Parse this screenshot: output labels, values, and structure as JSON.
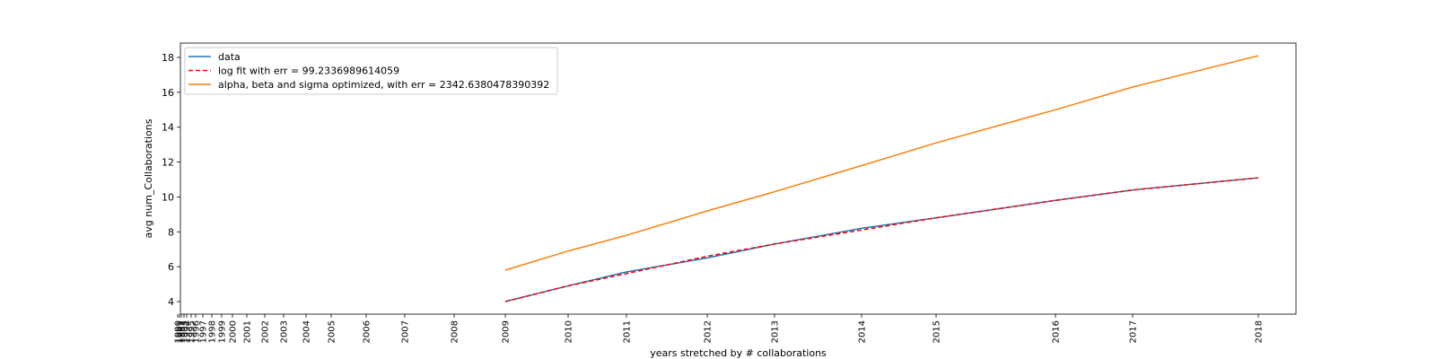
{
  "chart_data": {
    "type": "line",
    "title": "",
    "xlabel": "years stretched by # collaborations",
    "ylabel": "avg num_Collaborations",
    "ylim": [
      3.2,
      18.8
    ],
    "yticks": [
      4,
      6,
      8,
      10,
      12,
      14,
      16,
      18
    ],
    "x_tick_labels": [
      "1990",
      "1991",
      "1992",
      "1993",
      "1994",
      "1995",
      "1996",
      "1997",
      "1998",
      "1999",
      "2000",
      "2001",
      "2002",
      "2003",
      "2004",
      "2005",
      "2006",
      "2007",
      "2008",
      "2009",
      "2010",
      "2011",
      "2012",
      "2013",
      "2014",
      "2015",
      "2016",
      "2017",
      "2018"
    ],
    "grid": false,
    "legend_position": "top-left",
    "series": [
      {
        "name": "data",
        "color": "#1f77b4",
        "style": "solid",
        "x": [
          "2009",
          "2010",
          "2011",
          "2012",
          "2013",
          "2014",
          "2015",
          "2016",
          "2017",
          "2018"
        ],
        "values": [
          4.0,
          4.9,
          5.7,
          6.5,
          7.3,
          8.2,
          8.8,
          9.8,
          10.4,
          11.1
        ]
      },
      {
        "name": "log fit with err = 99.2336989614059",
        "color": "#ff0000",
        "style": "dashed",
        "x": [
          "2009",
          "2010",
          "2011",
          "2012",
          "2013",
          "2014",
          "2015",
          "2016",
          "2017",
          "2018"
        ],
        "values": [
          4.0,
          4.9,
          5.6,
          6.6,
          7.3,
          8.1,
          8.8,
          9.8,
          10.4,
          11.1
        ]
      },
      {
        "name": "alpha, beta and sigma optimized, with err = 2342.6380478390392",
        "color": "#ff7f0e",
        "style": "solid",
        "x": [
          "2009",
          "2010",
          "2011",
          "2012",
          "2013",
          "2014",
          "2015",
          "2016",
          "2017",
          "2018"
        ],
        "values": [
          5.8,
          6.9,
          7.8,
          9.2,
          10.3,
          11.8,
          13.1,
          15.0,
          16.3,
          18.1
        ]
      }
    ]
  }
}
